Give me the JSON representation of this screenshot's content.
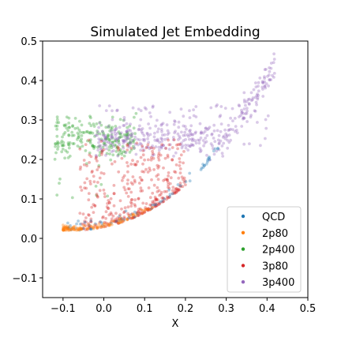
{
  "chart_data": {
    "type": "scatter",
    "title": "Simulated Jet Embedding",
    "xlabel": "X",
    "ylabel": "",
    "xlim": [
      -0.15,
      0.5
    ],
    "ylim": [
      -0.15,
      0.5
    ],
    "xticks": [
      "−0.1",
      "0.0",
      "0.1",
      "0.2",
      "0.3",
      "0.4",
      "0.5"
    ],
    "xtick_values": [
      -0.1,
      0.0,
      0.1,
      0.2,
      0.3,
      0.4,
      0.5
    ],
    "yticks": [
      "−0.1",
      "0.0",
      "0.1",
      "0.2",
      "0.3",
      "0.4",
      "0.5"
    ],
    "ytick_values": [
      -0.1,
      0.0,
      0.1,
      0.2,
      0.3,
      0.4,
      0.5
    ],
    "grid": false,
    "legend_position": "lower-right",
    "series": [
      {
        "name": "QCD",
        "color": "#1f77b4",
        "region": "curve",
        "x_range": [
          -0.09,
          0.28
        ],
        "spread": 0.012,
        "count": 70
      },
      {
        "name": "2p80",
        "color": "#ff7f0e",
        "region": "curve",
        "x_range": [
          -0.1,
          0.12
        ],
        "spread": 0.006,
        "count": 120
      },
      {
        "name": "2p400",
        "color": "#2ca02c",
        "region": "upper-left",
        "x_range": [
          -0.12,
          0.08
        ],
        "y_range": [
          0.2,
          0.32
        ],
        "count": 220
      },
      {
        "name": "3p80",
        "color": "#d62728",
        "region": "fill",
        "x_range": [
          -0.06,
          0.2
        ],
        "y_range": [
          0.02,
          0.25
        ],
        "count": 380
      },
      {
        "name": "3p400",
        "color": "#9467bd",
        "region": "band",
        "x_range": [
          -0.02,
          0.42
        ],
        "y_range": [
          0.2,
          0.34
        ],
        "count": 420
      }
    ]
  }
}
